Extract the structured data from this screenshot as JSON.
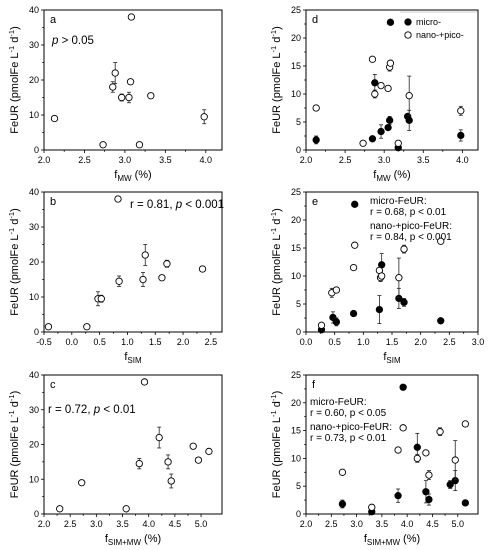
{
  "chart_data": [
    {
      "panel": "a",
      "type": "scatter",
      "xlabel": "f",
      "xsub": "MW",
      "xunit": " (%)",
      "ylabel": "FeUR (pmolFe L",
      "ysup1": "-1",
      "ymid": " d",
      "ysup2": "-1",
      "yend": ")",
      "xlim": [
        2.0,
        4.2
      ],
      "ylim": [
        0,
        40
      ],
      "xticks": [
        "2.0",
        "2.5",
        "3.0",
        "3.5",
        "4.0"
      ],
      "yticks": [
        "0",
        "10",
        "20",
        "30",
        "40"
      ],
      "annotation": "p > 0.05",
      "series": [
        {
          "style": "open",
          "points": [
            [
              2.13,
              9.0
            ],
            [
              2.73,
              1.5
            ],
            [
              2.85,
              18.0
            ],
            [
              2.88,
              22.0
            ],
            [
              2.96,
              15.0
            ],
            [
              3.05,
              15.0
            ],
            [
              3.07,
              19.5
            ],
            [
              3.08,
              38.0
            ],
            [
              3.18,
              1.5
            ],
            [
              3.32,
              15.5
            ],
            [
              3.98,
              9.5
            ]
          ],
          "yerr": [
            0,
            0,
            1.5,
            3.0,
            1.0,
            1.5,
            0,
            0,
            0,
            0,
            2.0
          ]
        }
      ]
    },
    {
      "panel": "b",
      "type": "scatter",
      "xlabel": "f",
      "xsub": "SIM",
      "xunit": "",
      "ylabel": "FeUR (pmolFe L",
      "ysup1": "-1",
      "ymid": " d",
      "ysup2": "-1",
      "yend": ")",
      "xlim": [
        -0.5,
        2.7
      ],
      "ylim": [
        0,
        40
      ],
      "xticks": [
        "-0.5",
        "0.0",
        "0.5",
        "1.0",
        "1.5",
        "2.0",
        "2.5"
      ],
      "yticks": [
        "0",
        "10",
        "20",
        "30",
        "40"
      ],
      "annotation": "r = 0.81, p < 0.001",
      "series": [
        {
          "style": "open",
          "points": [
            [
              -0.42,
              1.5
            ],
            [
              0.27,
              1.5
            ],
            [
              0.47,
              9.5
            ],
            [
              0.53,
              9.5
            ],
            [
              0.83,
              38.0
            ],
            [
              0.85,
              14.5
            ],
            [
              1.28,
              15.0
            ],
            [
              1.32,
              22.0
            ],
            [
              1.62,
              15.5
            ],
            [
              1.71,
              19.5
            ],
            [
              2.35,
              18.0
            ]
          ],
          "yerr": [
            0,
            0,
            2.0,
            1.0,
            0,
            1.5,
            2.0,
            3.0,
            0,
            1.0,
            0
          ]
        }
      ]
    },
    {
      "panel": "c",
      "type": "scatter",
      "xlabel": "f",
      "xsub": "SIM+MW",
      "xunit": " (%)",
      "ylabel": "FeUR (pmolFe L",
      "ysup1": "-1",
      "ymid": " d",
      "ysup2": "-1",
      "yend": ")",
      "xlim": [
        2.0,
        5.4
      ],
      "ylim": [
        0,
        40
      ],
      "xticks": [
        "2.0",
        "2.5",
        "3.0",
        "3.5",
        "4.0",
        "4.5",
        "5.0"
      ],
      "yticks": [
        "0",
        "10",
        "20",
        "30",
        "40"
      ],
      "annotation": "r = 0.72, p < 0.01",
      "series": [
        {
          "style": "open",
          "points": [
            [
              2.3,
              1.5
            ],
            [
              2.72,
              9.0
            ],
            [
              3.57,
              1.5
            ],
            [
              3.82,
              14.5
            ],
            [
              3.92,
              38.0
            ],
            [
              4.2,
              22.0
            ],
            [
              4.37,
              15.0
            ],
            [
              4.43,
              9.5
            ],
            [
              4.85,
              19.5
            ],
            [
              4.95,
              15.5
            ],
            [
              5.15,
              18.0
            ]
          ],
          "yerr": [
            0,
            0,
            0,
            1.5,
            0,
            3.0,
            2.0,
            2.0,
            0,
            0,
            0
          ]
        }
      ]
    },
    {
      "panel": "d",
      "type": "scatter",
      "xlabel": "f",
      "xsub": "MW",
      "xunit": " (%)",
      "ylabel": "FeUR (pmolFe L",
      "ysup1": "-1",
      "ymid": " d",
      "ysup2": "-1",
      "yend": ")",
      "xlim": [
        2.0,
        4.2
      ],
      "ylim": [
        0,
        25
      ],
      "xticks": [
        "2.0",
        "2.5",
        "3.0",
        "3.5",
        "4.0"
      ],
      "yticks": [
        "0",
        "5",
        "10",
        "15",
        "20",
        "25"
      ],
      "legend": [
        "micro-",
        "nano-+pico-"
      ],
      "series": [
        {
          "name": "micro-",
          "style": "filled",
          "points": [
            [
              2.13,
              1.8
            ],
            [
              2.85,
              2.0
            ],
            [
              2.88,
              12.0
            ],
            [
              2.96,
              3.3
            ],
            [
              3.05,
              4.0
            ],
            [
              3.07,
              5.3
            ],
            [
              3.08,
              22.8
            ],
            [
              3.18,
              0.4
            ],
            [
              3.3,
              6.0
            ],
            [
              3.32,
              5.3
            ],
            [
              3.98,
              2.6
            ]
          ],
          "yerr": [
            0.7,
            0,
            1.5,
            1.2,
            0,
            0.7,
            0,
            0,
            0,
            1.8,
            1.0
          ]
        },
        {
          "name": "nano-+pico-",
          "style": "open",
          "points": [
            [
              2.13,
              7.5
            ],
            [
              2.73,
              1.2
            ],
            [
              2.85,
              16.2
            ],
            [
              2.88,
              10.0
            ],
            [
              2.96,
              11.5
            ],
            [
              3.05,
              11.0
            ],
            [
              3.07,
              14.8
            ],
            [
              3.08,
              15.5
            ],
            [
              3.18,
              1.2
            ],
            [
              3.32,
              9.7
            ],
            [
              3.98,
              7.0
            ]
          ],
          "yerr": [
            0,
            0,
            0,
            0.7,
            0,
            0,
            0.7,
            0,
            0,
            3.5,
            0.8
          ]
        }
      ]
    },
    {
      "panel": "e",
      "type": "scatter",
      "xlabel": "f",
      "xsub": "SIM",
      "xunit": "",
      "ylabel": "FeUR (pmolFe L",
      "ysup1": "-1",
      "ymid": " d",
      "ysup2": "-1",
      "yend": ")",
      "xlim": [
        0.0,
        3.0
      ],
      "ylim": [
        0,
        25
      ],
      "xticks": [
        "0.0",
        "0.5",
        "1.0",
        "1.5",
        "2.0",
        "2.5",
        "3.0"
      ],
      "yticks": [
        "0",
        "5",
        "10",
        "15",
        "20",
        "25"
      ],
      "annotation_lines": [
        "micro-FeUR:",
        "r = 0.68, p < 0.01",
        "nano-+pico-FeUR:",
        "r = 0.84, p < 0.001"
      ],
      "series": [
        {
          "name": "micro-FeUR",
          "style": "filled",
          "points": [
            [
              0.27,
              0.4
            ],
            [
              0.47,
              2.6
            ],
            [
              0.53,
              1.8
            ],
            [
              0.83,
              3.3
            ],
            [
              0.85,
              22.8
            ],
            [
              1.28,
              4.0
            ],
            [
              1.32,
              12.0
            ],
            [
              1.62,
              6.0
            ],
            [
              1.71,
              5.3
            ],
            [
              2.35,
              2.0
            ]
          ],
          "yerr": [
            0,
            1.0,
            0.7,
            0,
            0,
            2.5,
            2.0,
            1.8,
            0.7,
            0
          ]
        },
        {
          "name": "nano-+pico-FeUR",
          "style": "open",
          "points": [
            [
              0.27,
              1.2
            ],
            [
              0.45,
              7.0
            ],
            [
              0.53,
              7.5
            ],
            [
              0.83,
              11.5
            ],
            [
              0.85,
              15.5
            ],
            [
              1.28,
              11.0
            ],
            [
              1.3,
              9.7
            ],
            [
              1.32,
              10.0
            ],
            [
              1.62,
              9.7
            ],
            [
              1.71,
              14.8
            ],
            [
              2.35,
              16.2
            ]
          ],
          "yerr": [
            0,
            0.8,
            0,
            0,
            0,
            0,
            0.7,
            0,
            3.5,
            0.7,
            0
          ]
        }
      ]
    },
    {
      "panel": "f",
      "type": "scatter",
      "xlabel": "f",
      "xsub": "SIM+MW",
      "xunit": " (%)",
      "ylabel": "FeUR (pmolFe L",
      "ysup1": "-1",
      "ymid": " d",
      "ysup2": "-1",
      "yend": ")",
      "xlim": [
        2.0,
        5.4
      ],
      "ylim": [
        0,
        25
      ],
      "xticks": [
        "2.0",
        "2.5",
        "3.0",
        "3.5",
        "4.0",
        "4.5",
        "5.0"
      ],
      "yticks": [
        "0",
        "5",
        "10",
        "15",
        "20",
        "25"
      ],
      "annotation_lines": [
        "micro-FeUR:",
        "r = 0.60, p < 0.05",
        "nano-+pico-FeUR:",
        "r = 0.73, p < 0.01"
      ],
      "series": [
        {
          "name": "micro-FeUR",
          "style": "filled",
          "points": [
            [
              2.72,
              1.8
            ],
            [
              3.3,
              0.4
            ],
            [
              3.82,
              3.3
            ],
            [
              3.92,
              22.8
            ],
            [
              4.2,
              12.0
            ],
            [
              4.37,
              4.0
            ],
            [
              4.43,
              2.6
            ],
            [
              4.85,
              5.3
            ],
            [
              4.95,
              6.0
            ],
            [
              5.15,
              2.0
            ]
          ],
          "yerr": [
            0.7,
            0,
            1.2,
            0,
            2.5,
            2.0,
            1.0,
            0.7,
            1.8,
            0
          ]
        },
        {
          "name": "nano-+pico-FeUR",
          "style": "open",
          "points": [
            [
              2.72,
              7.5
            ],
            [
              3.3,
              1.2
            ],
            [
              3.82,
              11.5
            ],
            [
              3.92,
              15.5
            ],
            [
              4.2,
              10.0
            ],
            [
              4.37,
              11.0
            ],
            [
              4.43,
              7.0
            ],
            [
              4.65,
              14.8
            ],
            [
              4.95,
              9.7
            ],
            [
              5.15,
              16.2
            ]
          ],
          "yerr": [
            0,
            0,
            0,
            0,
            0.7,
            0,
            0.8,
            0.7,
            3.5,
            0
          ]
        }
      ]
    }
  ]
}
